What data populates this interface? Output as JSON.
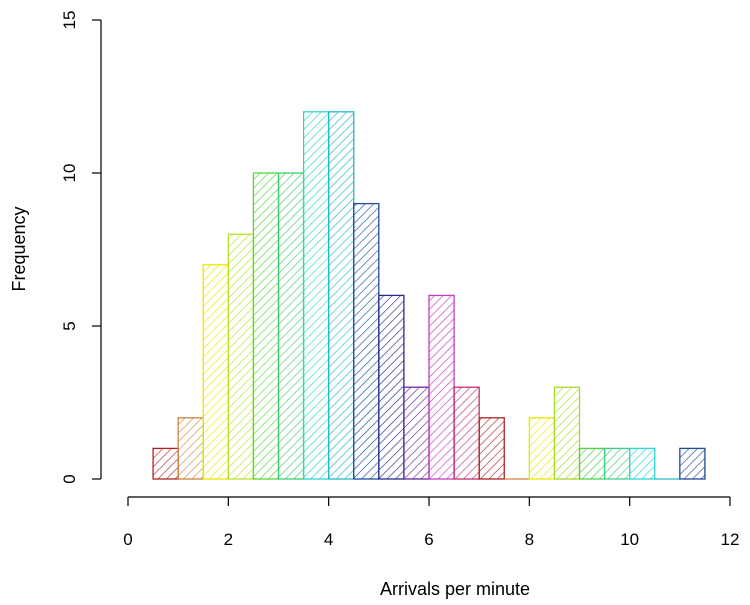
{
  "chart_data": {
    "type": "bar",
    "subtype": "histogram",
    "title": "",
    "xlabel": "Arrivals per minute",
    "ylabel": "Frequency",
    "xlim": [
      0,
      12
    ],
    "ylim": [
      0,
      15
    ],
    "x_ticks": [
      "0",
      "2",
      "4",
      "6",
      "8",
      "10",
      "12"
    ],
    "y_ticks": [
      "0",
      "5",
      "10",
      "15"
    ],
    "grid": false,
    "legend": "none",
    "fill_style": "diagonal hatching",
    "bin_width": 0.5,
    "bins": [
      {
        "start": 0.5,
        "end": 1.0,
        "count": 1,
        "color": "#b22222"
      },
      {
        "start": 1.0,
        "end": 1.5,
        "count": 2,
        "color": "#cd853f"
      },
      {
        "start": 1.5,
        "end": 2.0,
        "count": 7,
        "color": "#e8e800"
      },
      {
        "start": 2.0,
        "end": 2.5,
        "count": 8,
        "color": "#b7e32a"
      },
      {
        "start": 2.5,
        "end": 3.0,
        "count": 10,
        "color": "#55d83a"
      },
      {
        "start": 3.0,
        "end": 3.5,
        "count": 10,
        "color": "#3fcf6a"
      },
      {
        "start": 3.5,
        "end": 4.0,
        "count": 12,
        "color": "#2fd6c8"
      },
      {
        "start": 4.0,
        "end": 4.5,
        "count": 12,
        "color": "#27b9c9"
      },
      {
        "start": 4.5,
        "end": 5.0,
        "count": 9,
        "color": "#1f4aa0"
      },
      {
        "start": 5.0,
        "end": 5.5,
        "count": 6,
        "color": "#2a2c8c"
      },
      {
        "start": 5.5,
        "end": 6.0,
        "count": 3,
        "color": "#6a2a9c"
      },
      {
        "start": 6.0,
        "end": 6.5,
        "count": 6,
        "color": "#c43cc4"
      },
      {
        "start": 6.5,
        "end": 7.0,
        "count": 3,
        "color": "#c2306e"
      },
      {
        "start": 7.0,
        "end": 7.5,
        "count": 2,
        "color": "#b22222"
      },
      {
        "start": 7.5,
        "end": 8.0,
        "count": 0,
        "color": "#cd853f"
      },
      {
        "start": 8.0,
        "end": 8.5,
        "count": 2,
        "color": "#e8e800"
      },
      {
        "start": 8.5,
        "end": 9.0,
        "count": 3,
        "color": "#a6d92a"
      },
      {
        "start": 9.0,
        "end": 9.5,
        "count": 1,
        "color": "#4fd34a"
      },
      {
        "start": 9.5,
        "end": 10.0,
        "count": 1,
        "color": "#3fcf8a"
      },
      {
        "start": 10.0,
        "end": 10.5,
        "count": 1,
        "color": "#2fd6d6"
      },
      {
        "start": 10.5,
        "end": 11.0,
        "count": 0,
        "color": "#27b9c9"
      },
      {
        "start": 11.0,
        "end": 11.5,
        "count": 1,
        "color": "#1f4aa0"
      }
    ]
  }
}
